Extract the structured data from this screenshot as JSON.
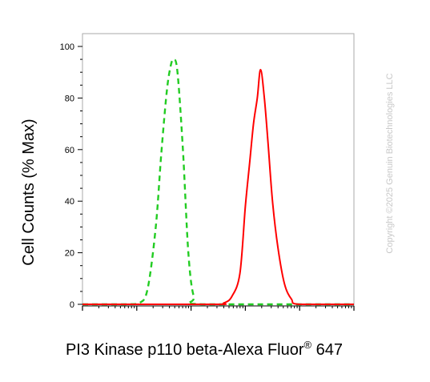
{
  "chart_data": {
    "type": "line",
    "xlabel": "PI3 Kinase p110 beta-Alexa Fluor",
    "xlabel_superscript": "®",
    "xlabel_suffix": " 647",
    "ylabel": "Cell Counts (% Max)",
    "ylim": [
      0,
      100
    ],
    "yticks": [
      0,
      20,
      40,
      60,
      80,
      100
    ],
    "xscale": "log",
    "xlim_decades": [
      0,
      5
    ],
    "grid": false,
    "legend": "none",
    "series": [
      {
        "style": "dashed",
        "color": "#22cc22",
        "x": [
          0.0,
          0.8,
          1.05,
          1.2,
          1.35,
          1.45,
          1.55,
          1.62,
          1.68,
          1.75,
          1.85,
          1.95,
          2.05,
          2.2,
          5.0
        ],
        "y": [
          0,
          0,
          0.5,
          6,
          30,
          58,
          82,
          92,
          95,
          90,
          60,
          20,
          3,
          0,
          0
        ]
      },
      {
        "style": "solid",
        "color": "#ff0000",
        "x": [
          0.0,
          2.4,
          2.6,
          2.75,
          2.9,
          3.0,
          3.08,
          3.15,
          3.22,
          3.28,
          3.35,
          3.42,
          3.5,
          3.6,
          3.72,
          3.85,
          4.0,
          5.0
        ],
        "y": [
          0,
          0,
          0.5,
          3,
          12,
          38,
          55,
          70,
          80,
          91,
          80,
          62,
          40,
          22,
          8,
          2,
          0,
          0
        ]
      }
    ]
  },
  "copyright": "Copyright ©2025 Genuin Biotechnologies LLC"
}
